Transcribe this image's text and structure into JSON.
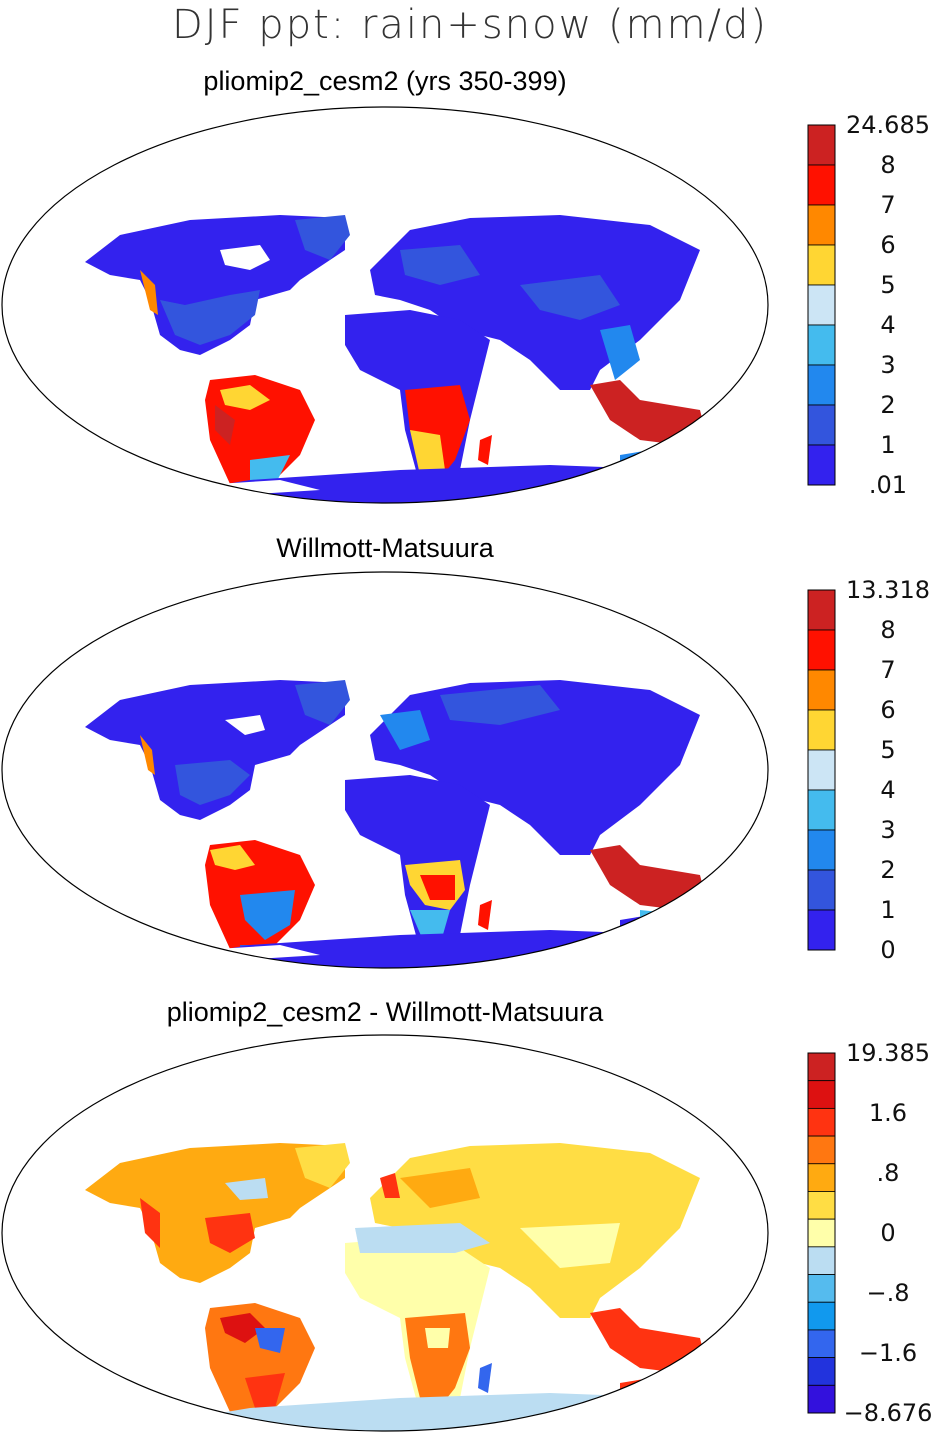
{
  "title": "DJF ppt: rain+snow (mm/d)",
  "colors": {
    "seq": [
      "#3322ee",
      "#3355dd",
      "#2288ee",
      "#44bbee",
      "#cce5f5",
      "#ffd633",
      "#ff8800",
      "#ff1100",
      "#cc2222"
    ],
    "diff": [
      "#3311dd",
      "#2233dd",
      "#3366ee",
      "#1199ee",
      "#55bbee",
      "#bbddf2",
      "#ffffaa",
      "#ffdd44",
      "#ffaa11",
      "#ff7711",
      "#ff3311",
      "#dd1111",
      "#cc2222"
    ],
    "coast": "#000000"
  },
  "panels": [
    {
      "title": "pliomip2_cesm2 (yrs 350-399)",
      "palette": "seq",
      "colorbar_labels": [
        "24.685",
        "8",
        "7",
        "6",
        "5",
        "4",
        "3",
        "2",
        "1",
        ".01"
      ]
    },
    {
      "title": "Willmott-Matsuura",
      "palette": "seq",
      "colorbar_labels": [
        "13.318",
        "8",
        "7",
        "6",
        "5",
        "4",
        "3",
        "2",
        "1",
        "0"
      ]
    },
    {
      "title": "pliomip2_cesm2 - Willmott-Matsuura",
      "palette": "diff",
      "colorbar_labels": [
        "19.385",
        "1.6",
        ".8",
        "0",
        "−.8",
        "−1.6",
        "−8.676"
      ]
    }
  ]
}
